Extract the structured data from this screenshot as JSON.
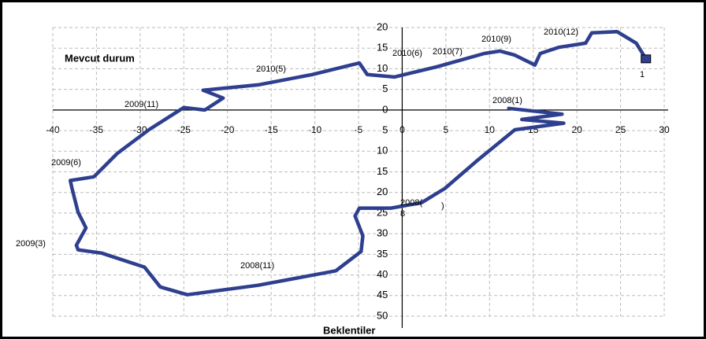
{
  "chart_data": {
    "type": "line",
    "y_title": "Mevcut durum",
    "x_title": "Beklentiler",
    "x": [
      12.2,
      18.3,
      13.7,
      18.5,
      12.9,
      8.5,
      4.9,
      2.2,
      -1.3,
      -4.9,
      -5.4,
      -4.5,
      -4.7,
      -7.6,
      -16.5,
      -24.6,
      -27.7,
      -29.5,
      -34.4,
      -37.1,
      -37.3,
      -36.2,
      -37.1,
      -37.8,
      -38,
      -35.3,
      -32.6,
      -29,
      -25,
      -22.6,
      -20.5,
      -22.8,
      -16.5,
      -10.3,
      -4.9,
      -4,
      -0.9,
      4,
      9.4,
      11.2,
      12.9,
      15.2,
      15.8,
      17.9,
      21,
      21.7,
      24.6,
      26.8,
      27.9
    ],
    "values": [
      0.4,
      -1,
      -2.3,
      -3.2,
      -4.8,
      -12.4,
      -19,
      -22.5,
      -23.8,
      -23.8,
      -25.7,
      -30.5,
      -34.3,
      -39,
      -42.5,
      -44.8,
      -42.9,
      -38.1,
      -34.7,
      -33.9,
      -32.8,
      -28.6,
      -24.8,
      -19,
      -17.1,
      -16.2,
      -10.5,
      -4.8,
      0.6,
      0,
      2.9,
      4.8,
      6.1,
      8.6,
      11.4,
      8.6,
      8,
      10.5,
      13.7,
      14.3,
      13.3,
      10.9,
      13.7,
      15.2,
      16.2,
      18.7,
      19,
      16.2,
      12.4
    ],
    "color": "#2e3f8f",
    "xlim": [
      -40,
      30
    ],
    "ylim": [
      -50,
      20
    ],
    "xticks": [
      -40,
      -35,
      -30,
      -25,
      -20,
      -15,
      -10,
      -5,
      0,
      5,
      10,
      15,
      20,
      25,
      30
    ],
    "yticks": [
      20,
      15,
      10,
      5,
      0,
      {
        "value": -5,
        "label": "5"
      },
      {
        "value": -10,
        "label": "10"
      },
      {
        "value": -15,
        "label": "15"
      },
      {
        "value": -20,
        "label": "20"
      },
      {
        "value": -25,
        "label": "25"
      },
      {
        "value": -30,
        "label": "30"
      },
      {
        "value": -35,
        "label": "35"
      },
      {
        "value": -40,
        "label": "40"
      },
      {
        "value": -45,
        "label": "45"
      },
      {
        "value": -50,
        "label": "50"
      }
    ],
    "grid": true,
    "annotations": [
      "2010(12)",
      "2010(9)",
      "2010(7)",
      "2010(6)",
      "2010(5)",
      "2009(11)",
      "2008(1)",
      "2009(6)",
      "2009(3)",
      "2008(11)",
      "2008(",
      "8",
      ")",
      "1"
    ]
  }
}
